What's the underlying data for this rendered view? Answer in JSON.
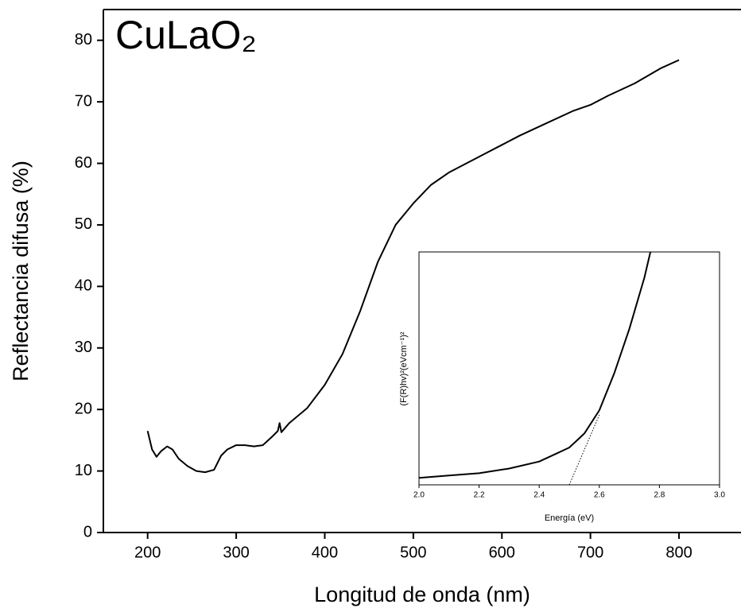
{
  "chart_data": [
    {
      "type": "line",
      "annotation": "CuLaO₂",
      "x_label": "Longitud de onda (nm)",
      "y_label": "Reflectancia difusa (%)",
      "xlim": [
        150,
        870
      ],
      "ylim": [
        0,
        85
      ],
      "xticks": [
        200,
        300,
        400,
        500,
        600,
        700,
        800
      ],
      "yticks": [
        0,
        10,
        20,
        30,
        40,
        50,
        60,
        70,
        80
      ],
      "series": [
        {
          "name": null,
          "color": "#000000",
          "x": [
            200,
            205,
            210,
            215,
            222,
            228,
            235,
            245,
            255,
            265,
            275,
            283,
            290,
            300,
            310,
            320,
            330,
            340,
            347,
            349,
            351,
            360,
            380,
            400,
            420,
            440,
            460,
            480,
            500,
            520,
            540,
            560,
            580,
            600,
            620,
            650,
            680,
            700,
            720,
            750,
            780,
            800
          ],
          "values": [
            16.5,
            13.5,
            12.3,
            13.2,
            14,
            13.5,
            12,
            10.8,
            10,
            9.8,
            10.2,
            12.5,
            13.5,
            14.2,
            14.2,
            14,
            14.2,
            15.5,
            16.5,
            17.8,
            16.3,
            17.8,
            20.2,
            24,
            29,
            36,
            44,
            50,
            53.5,
            56.5,
            58.5,
            60,
            61.5,
            63,
            64.5,
            66.5,
            68.5,
            69.5,
            71,
            73,
            75.5,
            76.8
          ]
        }
      ]
    },
    {
      "type": "line",
      "x_label": "Energía (eV)",
      "y_label": "(F(R)hv)²(eVcm⁻¹)²",
      "xlim": [
        2,
        3
      ],
      "ylim": [
        0,
        100
      ],
      "xticks": [
        {
          "value": 2,
          "label": "2.0"
        },
        {
          "value": 2.2,
          "label": "2.2"
        },
        {
          "value": 2.4,
          "label": "2.4"
        },
        {
          "value": 2.6,
          "label": "2.6"
        },
        {
          "value": 2.8,
          "label": "2.8"
        },
        {
          "value": 3,
          "label": "3.0"
        }
      ],
      "series": [
        {
          "name": null,
          "color": "#000000",
          "dashed": false,
          "x": [
            2.0,
            2.1,
            2.2,
            2.3,
            2.4,
            2.45,
            2.5,
            2.55,
            2.6,
            2.65,
            2.7,
            2.75,
            2.77
          ],
          "values": [
            3,
            4,
            5,
            7,
            10,
            13,
            16,
            22,
            32,
            48,
            67,
            89,
            100
          ]
        },
        {
          "name": null,
          "color": "#000000",
          "dashed": true,
          "x": [
            2.5,
            2.6
          ],
          "values": [
            0,
            30
          ]
        }
      ]
    }
  ]
}
